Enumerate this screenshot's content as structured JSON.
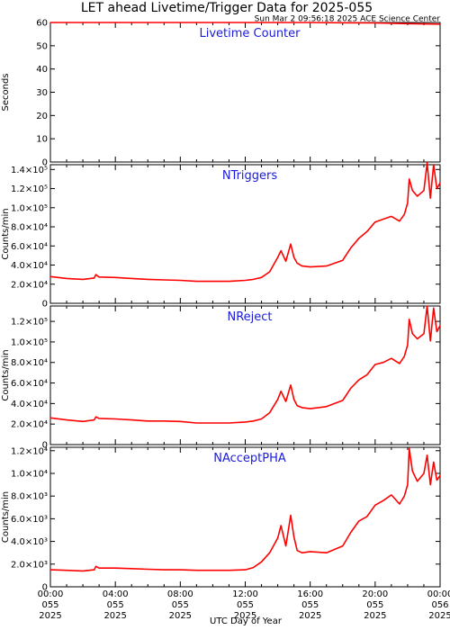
{
  "chart_data": {
    "type": "line",
    "title": "LET ahead Livetime/Trigger Data for 2025-055",
    "timestamp": "Sun Mar  2 09:56:18 2025 ACE Science Center",
    "xlabel": "UTC Day of Year",
    "line_color": "#ff0000",
    "label_color": "#1a1adb",
    "x_ticks": [
      {
        "line1": "00:00",
        "line2": "055",
        "line3": "2025"
      },
      {
        "line1": "04:00",
        "line2": "055",
        "line3": "2025"
      },
      {
        "line1": "08:00",
        "line2": "055",
        "line3": "2025"
      },
      {
        "line1": "12:00",
        "line2": "055",
        "line3": "2025"
      },
      {
        "line1": "16:00",
        "line2": "055",
        "line3": "2025"
      },
      {
        "line1": "20:00",
        "line2": "055",
        "line3": "2025"
      },
      {
        "line1": "00:00",
        "line2": "056",
        "line3": "2025"
      }
    ],
    "xlim_hours": [
      0,
      24
    ],
    "panels": [
      {
        "name": "Livetime Counter",
        "ylabel": "Seconds",
        "ylim": [
          0,
          60
        ],
        "yticks": [
          0,
          10,
          20,
          30,
          40,
          50,
          60
        ],
        "ytick_labels": [
          "0",
          "10",
          "20",
          "30",
          "40",
          "50",
          "60"
        ],
        "x": [
          0,
          2,
          4,
          6,
          8,
          10,
          12,
          14,
          16,
          18,
          20,
          22,
          23.99
        ],
        "y": [
          60,
          60,
          60,
          60,
          60,
          60,
          60,
          60,
          60,
          59.9,
          59.8,
          59.5,
          59.3
        ]
      },
      {
        "name": "NTriggers",
        "ylabel": "Counts/min",
        "ylim": [
          0,
          145000
        ],
        "yticks": [
          0,
          20000,
          40000,
          60000,
          80000,
          100000,
          120000,
          140000
        ],
        "ytick_labels": [
          "0",
          "2.0×10⁴",
          "4.0×10⁴",
          "6.0×10⁴",
          "8.0×10⁴",
          "1.0×10⁵",
          "1.2×10⁵",
          "1.4×10⁵"
        ],
        "x": [
          0,
          1,
          2,
          2.7,
          2.8,
          3,
          4,
          5,
          6,
          7,
          8,
          9,
          10,
          11,
          12,
          12.5,
          13,
          13.5,
          14,
          14.2,
          14.5,
          14.8,
          15,
          15.2,
          15.5,
          16,
          17,
          18,
          18.5,
          19,
          19.5,
          20,
          20.5,
          21,
          21.5,
          21.8,
          22,
          22.1,
          22.3,
          22.6,
          23,
          23.2,
          23.4,
          23.6,
          23.8,
          24
        ],
        "y": [
          28000,
          26000,
          25000,
          26500,
          30000,
          27500,
          27000,
          26000,
          25000,
          24500,
          24000,
          23000,
          23000,
          23000,
          24000,
          25000,
          27000,
          33000,
          48000,
          55000,
          44000,
          62000,
          48000,
          42000,
          39000,
          38000,
          39000,
          45000,
          58000,
          68000,
          75000,
          85000,
          88000,
          91000,
          86000,
          93000,
          105000,
          130000,
          118000,
          112000,
          118000,
          147000,
          110000,
          145000,
          120000,
          126000
        ]
      },
      {
        "name": "NReject",
        "ylabel": "Counts/min",
        "ylim": [
          0,
          135000
        ],
        "yticks": [
          0,
          20000,
          40000,
          60000,
          80000,
          100000,
          120000
        ],
        "ytick_labels": [
          "0",
          "2.0×10⁴",
          "4.0×10⁴",
          "6.0×10⁴",
          "8.0×10⁴",
          "1.0×10⁵",
          "1.2×10⁵"
        ],
        "x": [
          0,
          1,
          2,
          2.7,
          2.8,
          3,
          4,
          5,
          6,
          7,
          8,
          9,
          10,
          11,
          12,
          12.5,
          13,
          13.5,
          14,
          14.2,
          14.5,
          14.8,
          15,
          15.2,
          15.5,
          16,
          17,
          18,
          18.5,
          19,
          19.5,
          20,
          20.5,
          21,
          21.5,
          21.8,
          22,
          22.1,
          22.3,
          22.6,
          23,
          23.2,
          23.4,
          23.6,
          23.8,
          24
        ],
        "y": [
          26000,
          24000,
          22500,
          24000,
          27000,
          25500,
          25000,
          24000,
          23000,
          23000,
          22500,
          21000,
          21000,
          21000,
          22000,
          23000,
          25000,
          31000,
          44000,
          52000,
          42000,
          58000,
          44000,
          38000,
          36000,
          35000,
          37000,
          43000,
          55000,
          63000,
          68000,
          78000,
          80000,
          84000,
          79000,
          86000,
          97000,
          122000,
          108000,
          103000,
          108000,
          135000,
          101000,
          133000,
          110000,
          116000
        ]
      },
      {
        "name": "NAcceptPHA",
        "ylabel": "Counts/min",
        "ylim": [
          0,
          12300
        ],
        "yticks": [
          0,
          2000,
          4000,
          6000,
          8000,
          10000,
          12000
        ],
        "ytick_labels": [
          "0",
          "2.0×10³",
          "4.0×10³",
          "6.0×10³",
          "8.0×10³",
          "1.0×10⁴",
          "1.2×10⁴"
        ],
        "x": [
          0,
          1,
          2,
          2.7,
          2.8,
          3,
          4,
          5,
          6,
          7,
          8,
          9,
          10,
          11,
          12,
          12.5,
          13,
          13.5,
          14,
          14.2,
          14.5,
          14.8,
          15,
          15.2,
          15.5,
          16,
          17,
          18,
          18.5,
          19,
          19.5,
          20,
          20.5,
          21,
          21.5,
          21.8,
          22,
          22.1,
          22.3,
          22.6,
          23,
          23.2,
          23.4,
          23.6,
          23.8,
          24
        ],
        "y": [
          1500,
          1450,
          1400,
          1500,
          1800,
          1650,
          1650,
          1600,
          1550,
          1500,
          1500,
          1450,
          1450,
          1450,
          1500,
          1700,
          2200,
          3000,
          4300,
          5400,
          3600,
          6300,
          4400,
          3200,
          3000,
          3100,
          3000,
          3600,
          4800,
          5800,
          6200,
          7200,
          7600,
          8100,
          7300,
          8000,
          9000,
          12200,
          10200,
          9300,
          10000,
          11600,
          9000,
          11000,
          9400,
          9800
        ]
      }
    ]
  }
}
